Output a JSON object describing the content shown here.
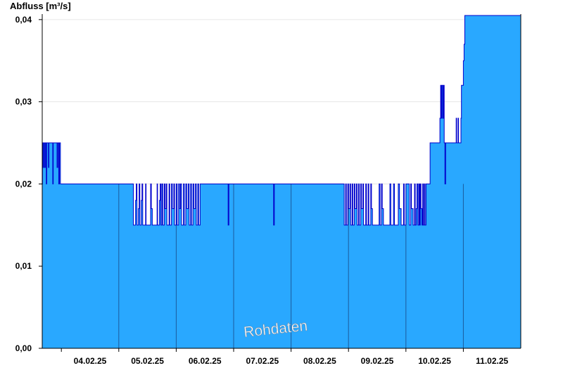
{
  "chart_data": {
    "type": "area",
    "ylabel": "Abfluss [m³/s]",
    "ylim": [
      0,
      0.0405
    ],
    "yticks": [
      {
        "value": 0.0,
        "label": "0,00"
      },
      {
        "value": 0.01,
        "label": "0,01"
      },
      {
        "value": 0.02,
        "label": "0,02"
      },
      {
        "value": 0.03,
        "label": "0,03"
      },
      {
        "value": 0.04,
        "label": "0,04"
      }
    ],
    "x_start": "03.02.25 16:00",
    "x_end": "11.02.25 24:00",
    "days": [
      {
        "label": "04.02.25",
        "day_boundary": "04.02.25 00:00"
      },
      {
        "label": "05.02.25",
        "day_boundary": "05.02.25 00:00"
      },
      {
        "label": "06.02.25",
        "day_boundary": "06.02.25 00:00"
      },
      {
        "label": "07.02.25",
        "day_boundary": "07.02.25 00:00"
      },
      {
        "label": "08.02.25",
        "day_boundary": "08.02.25 00:00"
      },
      {
        "label": "09.02.25",
        "day_boundary": "09.02.25 00:00"
      },
      {
        "label": "10.02.25",
        "day_boundary": "10.02.25 00:00"
      },
      {
        "label": "11.02.25",
        "day_boundary": "11.02.25 00:00"
      }
    ],
    "series": [
      {
        "values_hours_since_start": [
          [
            0,
            0.02
          ],
          [
            0.1,
            0.025
          ],
          [
            0.4,
            0.022
          ],
          [
            0.6,
            0.025
          ],
          [
            1.0,
            0.022
          ],
          [
            1.3,
            0.025
          ],
          [
            1.7,
            0.02
          ],
          [
            1.9,
            0.025
          ],
          [
            2.4,
            0.025
          ],
          [
            2.6,
            0.022
          ],
          [
            2.8,
            0.025
          ],
          [
            4.2,
            0.025
          ],
          [
            4.4,
            0.02
          ],
          [
            4.6,
            0.025
          ],
          [
            6.0,
            0.025
          ],
          [
            6.2,
            0.022
          ],
          [
            6.5,
            0.025
          ],
          [
            6.9,
            0.02
          ],
          [
            7.2,
            0.025
          ],
          [
            7.6,
            0.02
          ],
          [
            8.0,
            0.02
          ],
          [
            38.0,
            0.02
          ],
          [
            38.1,
            0.015
          ],
          [
            39.0,
            0.018
          ],
          [
            39.3,
            0.02
          ],
          [
            39.6,
            0.015
          ],
          [
            40.2,
            0.017
          ],
          [
            40.5,
            0.02
          ],
          [
            40.8,
            0.015
          ],
          [
            41.4,
            0.018
          ],
          [
            41.7,
            0.02
          ],
          [
            42.0,
            0.015
          ],
          [
            43.2,
            0.02
          ],
          [
            43.4,
            0.015
          ],
          [
            45.0,
            0.015
          ],
          [
            45.3,
            0.02
          ],
          [
            45.6,
            0.017
          ],
          [
            46.0,
            0.015
          ],
          [
            47.8,
            0.015
          ],
          [
            48.0,
            0.02
          ],
          [
            48.2,
            0.015
          ],
          [
            49.0,
            0.018
          ],
          [
            49.3,
            0.02
          ],
          [
            49.6,
            0.015
          ],
          [
            50.0,
            0.02
          ],
          [
            50.4,
            0.015
          ],
          [
            51.0,
            0.02
          ],
          [
            51.3,
            0.017
          ],
          [
            51.8,
            0.02
          ],
          [
            52.1,
            0.015
          ],
          [
            53.0,
            0.02
          ],
          [
            53.3,
            0.015
          ],
          [
            54.0,
            0.02
          ],
          [
            54.4,
            0.017
          ],
          [
            55.0,
            0.02
          ],
          [
            55.3,
            0.015
          ],
          [
            56.0,
            0.02
          ],
          [
            56.4,
            0.015
          ],
          [
            57.0,
            0.02
          ],
          [
            57.4,
            0.017
          ],
          [
            57.8,
            0.02
          ],
          [
            58.2,
            0.015
          ],
          [
            59.0,
            0.02
          ],
          [
            59.4,
            0.015
          ],
          [
            60.0,
            0.02
          ],
          [
            60.4,
            0.017
          ],
          [
            61.0,
            0.02
          ],
          [
            61.4,
            0.015
          ],
          [
            62.0,
            0.02
          ],
          [
            62.4,
            0.015
          ],
          [
            63.0,
            0.02
          ],
          [
            63.4,
            0.017
          ],
          [
            64.0,
            0.02
          ],
          [
            64.4,
            0.015
          ],
          [
            65.0,
            0.02
          ],
          [
            65.4,
            0.015
          ],
          [
            66.0,
            0.02
          ],
          [
            77.5,
            0.02
          ],
          [
            77.7,
            0.015
          ],
          [
            78.0,
            0.02
          ],
          [
            96.5,
            0.02
          ],
          [
            96.7,
            0.015
          ],
          [
            97.0,
            0.02
          ],
          [
            126.0,
            0.02
          ],
          [
            126.2,
            0.015
          ],
          [
            126.8,
            0.02
          ],
          [
            127.1,
            0.015
          ],
          [
            127.7,
            0.02
          ],
          [
            128.0,
            0.017
          ],
          [
            128.6,
            0.02
          ],
          [
            128.9,
            0.015
          ],
          [
            129.5,
            0.02
          ],
          [
            129.8,
            0.015
          ],
          [
            130.4,
            0.02
          ],
          [
            130.7,
            0.017
          ],
          [
            131.3,
            0.02
          ],
          [
            131.6,
            0.015
          ],
          [
            132.2,
            0.02
          ],
          [
            132.5,
            0.015
          ],
          [
            133.1,
            0.02
          ],
          [
            133.4,
            0.017
          ],
          [
            134.0,
            0.02
          ],
          [
            134.3,
            0.015
          ],
          [
            135.0,
            0.015
          ],
          [
            135.2,
            0.02
          ],
          [
            135.5,
            0.015
          ],
          [
            136.2,
            0.02
          ],
          [
            136.5,
            0.015
          ],
          [
            137.3,
            0.02
          ],
          [
            137.6,
            0.017
          ],
          [
            138.0,
            0.015
          ],
          [
            140.5,
            0.015
          ],
          [
            140.8,
            0.02
          ],
          [
            141.2,
            0.015
          ],
          [
            141.8,
            0.02
          ],
          [
            142.1,
            0.017
          ],
          [
            142.6,
            0.015
          ],
          [
            145.0,
            0.015
          ],
          [
            145.3,
            0.02
          ],
          [
            145.7,
            0.015
          ],
          [
            146.5,
            0.015
          ],
          [
            146.8,
            0.02
          ],
          [
            147.2,
            0.015
          ],
          [
            148.5,
            0.015
          ],
          [
            148.8,
            0.02
          ],
          [
            149.3,
            0.017
          ],
          [
            150.0,
            0.015
          ],
          [
            151.0,
            0.02
          ],
          [
            151.3,
            0.015
          ],
          [
            152.0,
            0.02
          ],
          [
            153.2,
            0.02
          ],
          [
            153.4,
            0.015
          ],
          [
            154.0,
            0.02
          ],
          [
            154.3,
            0.017
          ],
          [
            155.0,
            0.015
          ],
          [
            155.6,
            0.02
          ],
          [
            155.9,
            0.015
          ],
          [
            156.3,
            0.017
          ],
          [
            156.6,
            0.02
          ],
          [
            157.0,
            0.015
          ],
          [
            157.4,
            0.02
          ],
          [
            157.7,
            0.015
          ],
          [
            158.0,
            0.02
          ],
          [
            158.3,
            0.017
          ],
          [
            158.7,
            0.015
          ],
          [
            159.0,
            0.02
          ],
          [
            159.3,
            0.015
          ],
          [
            159.7,
            0.02
          ],
          [
            160.0,
            0.015
          ],
          [
            160.4,
            0.02
          ],
          [
            161.5,
            0.02
          ],
          [
            162.0,
            0.02
          ],
          [
            162.1,
            0.025
          ],
          [
            166.0,
            0.025
          ],
          [
            166.2,
            0.028
          ],
          [
            166.5,
            0.032
          ],
          [
            166.8,
            0.028
          ],
          [
            167.1,
            0.032
          ],
          [
            167.5,
            0.028
          ],
          [
            167.8,
            0.032
          ],
          [
            168.0,
            0.025
          ],
          [
            168.3,
            0.02
          ],
          [
            168.6,
            0.025
          ],
          [
            171.0,
            0.025
          ],
          [
            172.8,
            0.025
          ],
          [
            173.0,
            0.028
          ],
          [
            173.2,
            0.025
          ],
          [
            173.6,
            0.025
          ],
          [
            173.8,
            0.028
          ],
          [
            174.0,
            0.025
          ],
          [
            174.8,
            0.025
          ],
          [
            175.0,
            0.028
          ],
          [
            175.2,
            0.032
          ],
          [
            175.8,
            0.032
          ],
          [
            176.0,
            0.035
          ],
          [
            176.3,
            0.037
          ],
          [
            176.6,
            0.041
          ],
          [
            176.8,
            0.041
          ]
        ]
      }
    ],
    "annotation": "Rohdaten",
    "colors": {
      "fill": "#29a8ff",
      "line": "#0000cc",
      "grid": "#e6e6e6",
      "separator": "#1c5a9c",
      "axis": "#000000"
    },
    "grid": true
  }
}
